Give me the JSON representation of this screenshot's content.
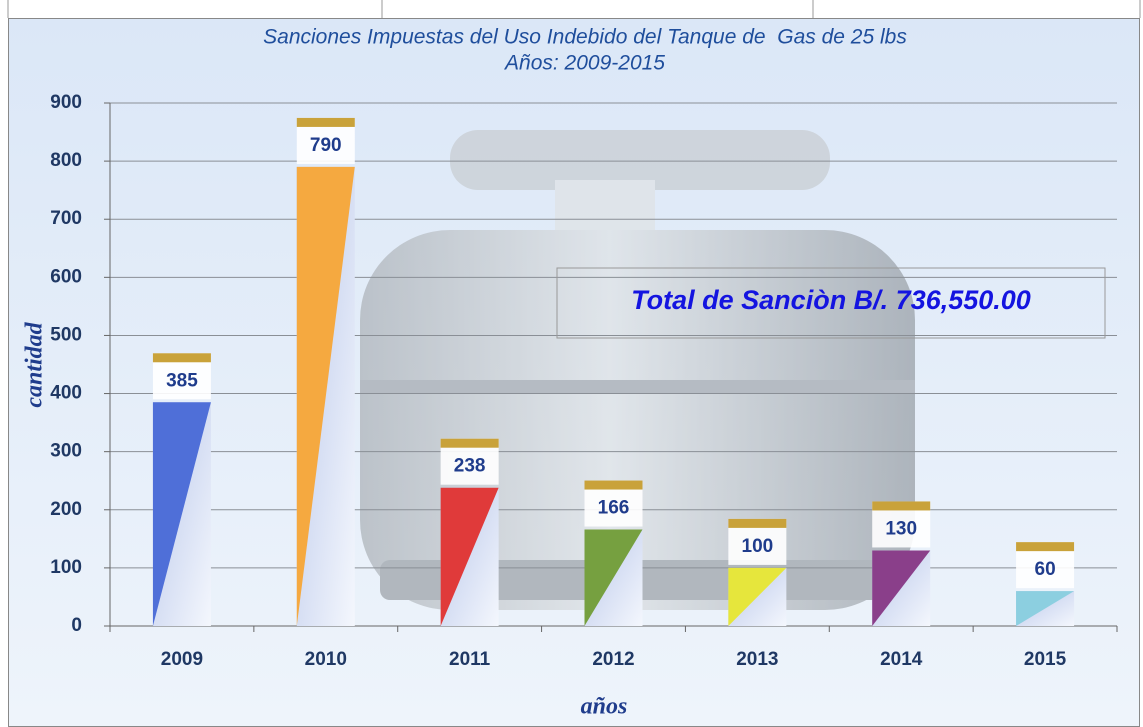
{
  "chart_data": {
    "type": "bar",
    "title": "Sanciones Impuestas del Uso Indebido del Tanque de  Gas de 25 lbs",
    "subtitle": "Años: 2009-2015",
    "y_label": "cantidad",
    "x_label": "años",
    "annotation": "Total de Sanciòn B/. 736,550.00",
    "categories": [
      "2009",
      "2010",
      "2011",
      "2012",
      "2013",
      "2014",
      "2015"
    ],
    "values": [
      385,
      790,
      238,
      166,
      100,
      130,
      60
    ],
    "colors": [
      "#4f6fd8",
      "#f5a940",
      "#e03a3a",
      "#76a040",
      "#e6e63c",
      "#8a3f8a",
      "#8ccfe0"
    ],
    "ylim": [
      0,
      900
    ],
    "yticks": [
      0,
      100,
      200,
      300,
      400,
      500,
      600,
      700,
      800,
      900
    ],
    "grid": true
  }
}
